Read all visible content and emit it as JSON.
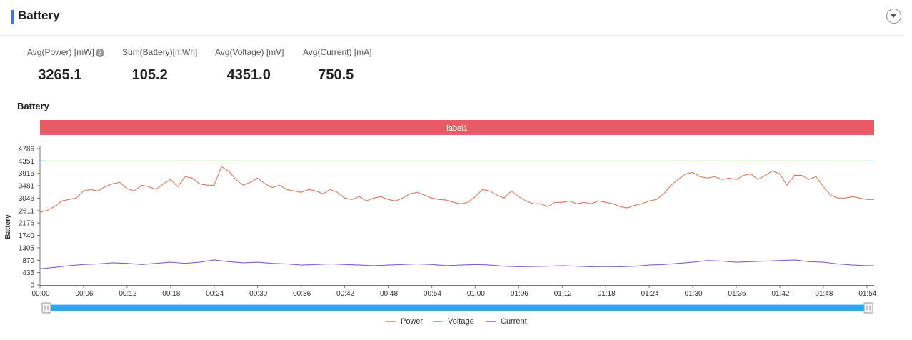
{
  "header": {
    "title": "Battery"
  },
  "metrics": [
    {
      "label": "Avg(Power) [mW]",
      "value": "3265.1",
      "help": true
    },
    {
      "label": "Sum(Battery)[mWh]",
      "value": "105.2"
    },
    {
      "label": "Avg(Voltage) [mV]",
      "value": "4351.0"
    },
    {
      "label": "Avg(Current) [mA]",
      "value": "750.5"
    }
  ],
  "icons": {
    "help": "help-icon",
    "collapse": "chevron-down-icon"
  },
  "chart_data": {
    "type": "line",
    "title": "Battery",
    "ylabel": "Battery",
    "xlabel": "",
    "ylim": [
      0,
      4786
    ],
    "yticks": [
      0,
      435,
      870,
      1305,
      1740,
      2176,
      2611,
      3046,
      3481,
      3916,
      4351,
      4786
    ],
    "xlim": [
      0,
      115
    ],
    "xticks": [
      0,
      6,
      12,
      18,
      24,
      30,
      36,
      42,
      48,
      54,
      60,
      66,
      72,
      78,
      84,
      90,
      96,
      102,
      108,
      114
    ],
    "xtick_labels": [
      "00:00",
      "00:06",
      "00:12",
      "00:18",
      "00:24",
      "00:30",
      "00:36",
      "00:42",
      "00:48",
      "00:54",
      "01:00",
      "01:06",
      "01:12",
      "01:18",
      "01:24",
      "01:30",
      "01:36",
      "01:42",
      "01:48",
      "01:54"
    ],
    "label_band": {
      "text": "label1",
      "color": "#e85a66"
    },
    "series": [
      {
        "name": "Power",
        "color": "#e0775a",
        "x": [
          0,
          1,
          2,
          3,
          4,
          5,
          6,
          7,
          8,
          9,
          10,
          11,
          12,
          13,
          14,
          15,
          16,
          17,
          18,
          19,
          20,
          21,
          22,
          23,
          24,
          25,
          26,
          27,
          28,
          29,
          30,
          31,
          32,
          33,
          34,
          35,
          36,
          37,
          38,
          39,
          40,
          41,
          42,
          43,
          44,
          45,
          46,
          47,
          48,
          49,
          50,
          51,
          52,
          53,
          54,
          55,
          56,
          57,
          58,
          59,
          60,
          61,
          62,
          63,
          64,
          65,
          66,
          67,
          68,
          69,
          70,
          71,
          72,
          73,
          74,
          75,
          76,
          77,
          78,
          79,
          80,
          81,
          82,
          83,
          84,
          85,
          86,
          87,
          88,
          89,
          90,
          91,
          92,
          93,
          94,
          95,
          96,
          97,
          98,
          99,
          100,
          101,
          102,
          103,
          104,
          105,
          106,
          107,
          108,
          109,
          110,
          111,
          112,
          113,
          114,
          115
        ],
        "values": [
          2550,
          2620,
          2750,
          2950,
          3000,
          3050,
          3300,
          3350,
          3300,
          3450,
          3550,
          3600,
          3380,
          3300,
          3500,
          3450,
          3350,
          3550,
          3700,
          3450,
          3800,
          3750,
          3550,
          3500,
          3500,
          4150,
          4000,
          3700,
          3500,
          3600,
          3750,
          3550,
          3420,
          3500,
          3350,
          3300,
          3250,
          3350,
          3300,
          3200,
          3350,
          3250,
          3050,
          3000,
          3100,
          2950,
          3050,
          3100,
          3000,
          2950,
          3050,
          3200,
          3250,
          3150,
          3050,
          3000,
          2980,
          2900,
          2850,
          2900,
          3100,
          3350,
          3300,
          3150,
          3050,
          3300,
          3100,
          2950,
          2850,
          2850,
          2750,
          2900,
          2900,
          2950,
          2850,
          2900,
          2850,
          2950,
          2900,
          2850,
          2750,
          2700,
          2800,
          2850,
          2950,
          3000,
          3200,
          3500,
          3700,
          3900,
          3950,
          3800,
          3750,
          3800,
          3700,
          3750,
          3700,
          3850,
          3900,
          3700,
          3850,
          4000,
          3900,
          3500,
          3850,
          3850,
          3700,
          3800,
          3450,
          3150,
          3050,
          3050,
          3100,
          3050,
          3000,
          3000
        ]
      },
      {
        "name": "Voltage",
        "color": "#5a9ae0",
        "x": [
          0,
          115
        ],
        "values": [
          4351,
          4351
        ]
      },
      {
        "name": "Current",
        "color": "#8a5ad4",
        "x": [
          0,
          2,
          4,
          6,
          8,
          10,
          12,
          14,
          16,
          18,
          20,
          22,
          24,
          26,
          28,
          30,
          32,
          34,
          36,
          38,
          40,
          42,
          44,
          46,
          48,
          50,
          52,
          54,
          56,
          58,
          60,
          62,
          64,
          66,
          68,
          70,
          72,
          74,
          76,
          78,
          80,
          82,
          84,
          86,
          88,
          90,
          92,
          94,
          96,
          98,
          100,
          102,
          104,
          106,
          108,
          110,
          112,
          114,
          115
        ],
        "values": [
          570,
          620,
          680,
          720,
          740,
          780,
          760,
          720,
          760,
          800,
          760,
          800,
          880,
          820,
          780,
          800,
          760,
          740,
          700,
          720,
          740,
          720,
          700,
          680,
          700,
          720,
          740,
          720,
          680,
          700,
          720,
          700,
          660,
          640,
          650,
          660,
          680,
          660,
          640,
          650,
          640,
          660,
          700,
          720,
          760,
          800,
          860,
          840,
          800,
          820,
          840,
          860,
          880,
          820,
          800,
          740,
          700,
          680,
          680
        ]
      }
    ]
  }
}
